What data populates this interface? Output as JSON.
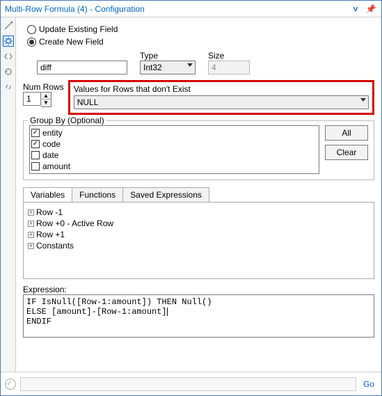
{
  "title": "Multi-Row Formula (4) - Configuration",
  "radios": {
    "update_existing": "Update Existing Field",
    "create_new": "Create New Field",
    "selected": "create_new"
  },
  "new_field": {
    "name_value": "diff"
  },
  "type": {
    "label": "Type",
    "value": "Int32"
  },
  "size": {
    "label": "Size",
    "value": "4"
  },
  "num_rows": {
    "label": "Num Rows",
    "value": "1"
  },
  "dont_exist": {
    "label": "Values for Rows that don't Exist",
    "value": "NULL"
  },
  "group_by": {
    "legend": "Group By (Optional)",
    "items": [
      {
        "label": "entity",
        "checked": true
      },
      {
        "label": "code",
        "checked": true
      },
      {
        "label": "date",
        "checked": false
      },
      {
        "label": "amount",
        "checked": false
      }
    ],
    "all_btn": "All",
    "clear_btn": "Clear"
  },
  "tabs": {
    "variables": "Variables",
    "functions": "Functions",
    "saved": "Saved Expressions",
    "active": "variables"
  },
  "tree": [
    "Row -1",
    "Row +0 - Active Row",
    "Row +1",
    "Constants"
  ],
  "expression": {
    "label": "Expression:",
    "text": "IF IsNull([Row-1:amount]) THEN Null()\nELSE [amount]-[Row-1:amount]\nENDIF"
  },
  "footer": {
    "go": "Go"
  },
  "colors": {
    "highlight": "#d60000",
    "link": "#0066cc"
  }
}
